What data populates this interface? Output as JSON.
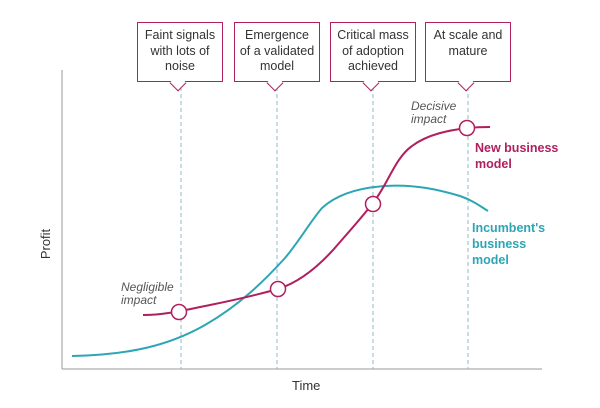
{
  "colors": {
    "new_model": "#b01f5e",
    "incumbent": "#2ca6b4",
    "axis": "#999999",
    "grid_dashed": "#8fb8c8",
    "text": "#333333"
  },
  "stages": [
    {
      "lines": [
        "Faint signals",
        "with lots of",
        "noise"
      ]
    },
    {
      "lines": [
        "Emergence",
        "of a validated",
        "model"
      ]
    },
    {
      "lines": [
        "Critical mass",
        "of adoption",
        "achieved"
      ]
    },
    {
      "lines": [
        "At scale and",
        "mature"
      ]
    }
  ],
  "annotations": {
    "negligible": [
      "Negligible",
      "impact"
    ],
    "decisive": [
      "Decisive",
      "impact"
    ]
  },
  "series_labels": {
    "new_model": [
      "New business",
      "model"
    ],
    "incumbent": [
      "Incumbent's",
      "business",
      "model"
    ]
  },
  "axes": {
    "x_label": "Time",
    "y_label": "Profit"
  }
}
